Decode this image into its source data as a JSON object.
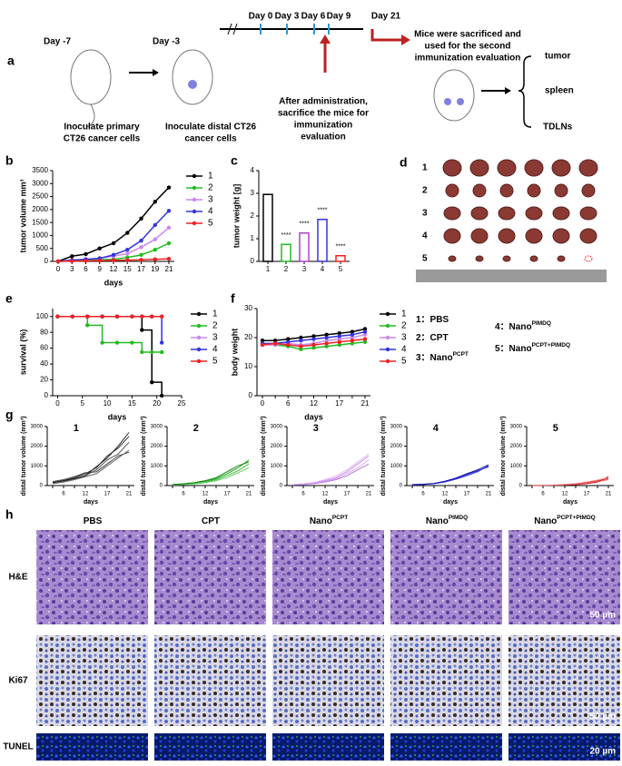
{
  "panel_labels": [
    "a",
    "b",
    "c",
    "d",
    "e",
    "f",
    "g",
    "h"
  ],
  "schematic": {
    "day_m7": "Day -7",
    "day_m3": "Day -3",
    "primary": [
      "Inoculate primary",
      "CT26 cancer cells"
    ],
    "distal": [
      "Inoculate distal CT26",
      "cancer cells"
    ],
    "days": [
      "Day 0",
      "Day 3",
      "Day 6",
      "Day 9"
    ],
    "day21": "Day 21",
    "second": [
      "Mice were sacrificed and",
      "used for the second",
      "immunization evaluation"
    ],
    "after": [
      "After administration,",
      "sacrifice the mice for",
      "immunization",
      "evaluation"
    ],
    "organs": [
      "tumor",
      "spleen",
      "TDLNs"
    ]
  },
  "chart_data": [
    {
      "type": "line",
      "markers": true,
      "legend": "right",
      "categories": [
        "0",
        "3",
        "6",
        "9",
        "12",
        "15",
        "17",
        "19",
        "21"
      ],
      "xlabel": "days",
      "ylabel": "tumor volume mm³",
      "ylim": [
        0,
        3500
      ],
      "yticks": [
        0,
        500,
        1000,
        1500,
        2000,
        2500,
        3000,
        3500
      ],
      "series": [
        {
          "name": "1",
          "color": "#000000",
          "values": [
            0,
            200,
            280,
            500,
            700,
            1100,
            1650,
            2300,
            2850
          ]
        },
        {
          "name": "2",
          "color": "#22bb22",
          "values": [
            0,
            20,
            40,
            60,
            80,
            150,
            250,
            450,
            700
          ]
        },
        {
          "name": "3",
          "color": "#cc88ee",
          "values": [
            0,
            50,
            80,
            120,
            200,
            300,
            550,
            850,
            1300
          ]
        },
        {
          "name": "4",
          "color": "#3333dd",
          "values": [
            0,
            50,
            80,
            120,
            250,
            450,
            800,
            1400,
            1950
          ]
        },
        {
          "name": "5",
          "color": "#ee2222",
          "values": [
            0,
            10,
            20,
            30,
            40,
            50,
            60,
            80,
            100
          ]
        }
      ]
    },
    {
      "type": "bar",
      "categories": [
        "1",
        "2",
        "3",
        "4",
        "5"
      ],
      "values": [
        2.95,
        0.75,
        1.25,
        1.85,
        0.25
      ],
      "colors": [
        "#000000",
        "#22bb22",
        "#aa44cc",
        "#3333dd",
        "#ee2222"
      ],
      "annotations": [
        null,
        "****",
        "****",
        "****",
        "****"
      ],
      "ylabel": "tumor weight [g]",
      "ylim": [
        0,
        4
      ],
      "yticks": [
        0,
        1,
        2,
        3,
        4
      ]
    },
    {
      "type": "line",
      "step": true,
      "markers": true,
      "legend": "right",
      "x": [
        0,
        3,
        6,
        9,
        12,
        15,
        17,
        19,
        21
      ],
      "xlim": [
        -1,
        25
      ],
      "xticks": [
        0,
        5,
        10,
        15,
        20,
        25
      ],
      "xlabel": "days",
      "ylabel": "survival (%)",
      "ylim": [
        0,
        110
      ],
      "yticks": [
        0,
        20,
        40,
        60,
        80,
        100
      ],
      "series": [
        {
          "name": "1",
          "color": "#000000",
          "values": [
            100,
            100,
            100,
            100,
            100,
            100,
            83,
            17,
            0
          ]
        },
        {
          "name": "2",
          "color": "#22bb22",
          "values": [
            100,
            100,
            89,
            67,
            67,
            67,
            55,
            55,
            55
          ]
        },
        {
          "name": "3",
          "color": "#cc88ee",
          "values": [
            100,
            100,
            100,
            100,
            100,
            100,
            100,
            100,
            100
          ]
        },
        {
          "name": "4",
          "color": "#3333dd",
          "values": [
            100,
            100,
            100,
            100,
            100,
            100,
            100,
            100,
            67
          ]
        },
        {
          "name": "5",
          "color": "#ee2222",
          "values": [
            100,
            100,
            100,
            100,
            100,
            100,
            100,
            100,
            100
          ]
        }
      ]
    },
    {
      "type": "line",
      "markers": true,
      "legend": "right",
      "categories": [
        "0",
        null,
        "6",
        null,
        "12",
        null,
        "17",
        null,
        "21"
      ],
      "xlabel": "days",
      "ylabel": "body weight",
      "ylim": [
        0,
        30
      ],
      "yticks": [
        0,
        10,
        20,
        30
      ],
      "series": [
        {
          "name": "1",
          "color": "#000000",
          "values": [
            19,
            19,
            19.5,
            20,
            20.5,
            21,
            21.5,
            22,
            23
          ]
        },
        {
          "name": "2",
          "color": "#22bb22",
          "values": [
            18,
            17.5,
            17,
            16,
            16.5,
            17,
            17.5,
            18,
            18.5
          ]
        },
        {
          "name": "3",
          "color": "#cc88ee",
          "values": [
            17.5,
            17.5,
            18,
            17.5,
            18,
            19,
            19.5,
            20,
            21
          ]
        },
        {
          "name": "4",
          "color": "#3333dd",
          "values": [
            18,
            18,
            18.5,
            19,
            19.5,
            20,
            20.5,
            21,
            22
          ]
        },
        {
          "name": "5",
          "color": "#ee2222",
          "values": [
            17.5,
            18,
            17.5,
            17,
            17.5,
            18,
            18.5,
            19,
            19.5
          ]
        }
      ]
    },
    {
      "type": "line",
      "title": "1",
      "categories": [
        null,
        "6",
        null,
        "12",
        null,
        "17",
        null,
        "21"
      ],
      "xlabel": "days",
      "ylabel": "distal tumor volume (mm³)",
      "ylim": [
        0,
        3000
      ],
      "yticks": [
        0,
        1000,
        2000,
        3000
      ],
      "series": [
        {
          "color": "#333333",
          "values": [
            150,
            250,
            400,
            600,
            900,
            1500,
            1900,
            2500
          ]
        },
        {
          "color": "#555555",
          "values": [
            100,
            200,
            350,
            500,
            800,
            1300,
            1600,
            2200
          ]
        },
        {
          "color": "#444444",
          "values": [
            200,
            300,
            450,
            650,
            700,
            1100,
            1500,
            1700
          ]
        },
        {
          "color": "#666666",
          "values": [
            100,
            180,
            300,
            450,
            600,
            1000,
            1400,
            1800
          ]
        },
        {
          "color": "#222222",
          "values": [
            150,
            250,
            350,
            500,
            950,
            1400,
            2000,
            2700
          ]
        }
      ]
    },
    {
      "type": "line",
      "title": "2",
      "categories": [
        null,
        "6",
        null,
        "12",
        null,
        "17",
        null,
        "21"
      ],
      "xlabel": "days",
      "ylabel": "distal tumor volume (mm³)",
      "ylim": [
        0,
        3000
      ],
      "yticks": [
        0,
        1000,
        2000,
        3000
      ],
      "series": [
        {
          "color": "#22aa22",
          "values": [
            50,
            80,
            120,
            200,
            350,
            600,
            900,
            1300
          ]
        },
        {
          "color": "#44bb44",
          "values": [
            40,
            60,
            100,
            180,
            300,
            500,
            750,
            1100
          ]
        },
        {
          "color": "#66cc66",
          "values": [
            30,
            50,
            80,
            150,
            250,
            400,
            650,
            900
          ]
        },
        {
          "color": "#118811",
          "values": [
            60,
            90,
            150,
            250,
            400,
            700,
            1000,
            1200
          ]
        }
      ]
    },
    {
      "type": "line",
      "title": "3",
      "categories": [
        null,
        "6",
        null,
        "12",
        null,
        "17",
        null,
        "21"
      ],
      "xlabel": "days",
      "ylabel": "distal tumor volume (mm³)",
      "ylim": [
        0,
        3000
      ],
      "yticks": [
        0,
        1000,
        2000,
        3000
      ],
      "series": [
        {
          "color": "#cc88ee",
          "values": [
            50,
            80,
            150,
            250,
            400,
            700,
            1100,
            1500
          ]
        },
        {
          "color": "#ddaaf0",
          "values": [
            40,
            70,
            120,
            200,
            350,
            600,
            900,
            1300
          ]
        },
        {
          "color": "#bb77dd",
          "values": [
            30,
            60,
            100,
            180,
            300,
            500,
            800,
            1100
          ]
        },
        {
          "color": "#e0b8f5",
          "values": [
            50,
            90,
            160,
            300,
            500,
            800,
            1200,
            1600
          ]
        }
      ]
    },
    {
      "type": "line",
      "title": "4",
      "categories": [
        null,
        "6",
        null,
        "12",
        null,
        "17",
        null,
        "21"
      ],
      "xlabel": "days",
      "ylabel": "distal tumor volume (mm³)",
      "ylim": [
        0,
        3000
      ],
      "yticks": [
        0,
        1000,
        2000,
        3000
      ],
      "series": [
        {
          "color": "#2222cc",
          "values": [
            40,
            60,
            100,
            200,
            350,
            550,
            750,
            950
          ]
        },
        {
          "color": "#4444dd",
          "values": [
            30,
            50,
            90,
            180,
            320,
            500,
            700,
            1000
          ]
        },
        {
          "color": "#1111aa",
          "values": [
            50,
            70,
            110,
            220,
            380,
            600,
            800,
            1050
          ]
        }
      ]
    },
    {
      "type": "line",
      "title": "5",
      "categories": [
        null,
        "6",
        null,
        "12",
        null,
        "17",
        null,
        "21"
      ],
      "xlabel": "days",
      "ylabel": "distal tumor volume (mm³)",
      "ylim": [
        0,
        3000
      ],
      "yticks": [
        0,
        1000,
        2000,
        3000
      ],
      "series": [
        {
          "color": "#dd3333",
          "values": [
            10,
            20,
            30,
            50,
            80,
            150,
            250,
            350
          ]
        },
        {
          "color": "#ee6666",
          "values": [
            10,
            15,
            25,
            40,
            70,
            120,
            200,
            300
          ]
        },
        {
          "color": "#cc2222",
          "values": [
            5,
            10,
            20,
            30,
            50,
            100,
            180,
            450
          ]
        },
        {
          "color": "#f08888",
          "values": [
            10,
            20,
            30,
            60,
            100,
            180,
            280,
            400
          ]
        }
      ]
    }
  ],
  "tumor_photos": {
    "rows": [
      "1",
      "2",
      "3",
      "4",
      "5"
    ]
  },
  "key_legend": [
    {
      "text": "1：PBS"
    },
    {
      "text": "2：CPT"
    },
    {
      "text": "3：Nano",
      "sup": "PCPT"
    },
    {
      "text": "4：Nano",
      "sup": "PIMDQ"
    },
    {
      "text": "5：Nano",
      "sup": "PCPT+PIMDQ"
    }
  ],
  "histology": {
    "columns": [
      {
        "text": "PBS"
      },
      {
        "text": "CPT"
      },
      {
        "text": "Nano",
        "sup": "PCPT"
      },
      {
        "text": "Nano",
        "sup": "PIMDQ"
      },
      {
        "text": "Nano",
        "sup": "PCPT+PIMDQ"
      }
    ],
    "rows": [
      "H&E",
      "Ki67",
      "TUNEL"
    ],
    "scale_bars": [
      "50 µm",
      "50 µm",
      "20 µm"
    ]
  }
}
